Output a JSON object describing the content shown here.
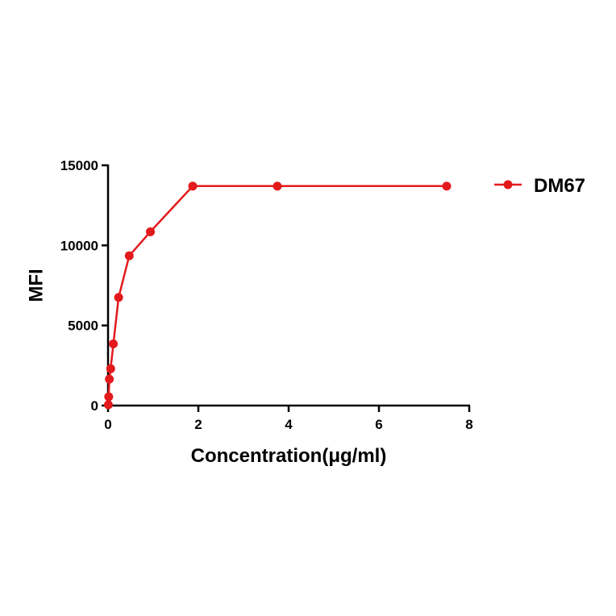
{
  "chart_data": {
    "type": "line",
    "title": "",
    "xlabel": "Concentration(μg/ml)",
    "ylabel": "MFI",
    "xlim": [
      0,
      8
    ],
    "ylim": [
      0,
      15000
    ],
    "x_ticks": [
      0,
      2,
      4,
      6,
      8
    ],
    "y_ticks": [
      0,
      5000,
      10000,
      15000
    ],
    "x_tick_labels": [
      "0",
      "2",
      "4",
      "6",
      "8"
    ],
    "y_tick_labels": [
      "0",
      "5000",
      "10000",
      "15000"
    ],
    "grid": false,
    "legend_position": "top-right",
    "series": [
      {
        "name": "DM67",
        "color": "#e31a1c",
        "x": [
          0.0073,
          0.0146,
          0.029,
          0.058,
          0.117,
          0.234,
          0.469,
          0.938,
          1.875,
          3.75,
          7.5
        ],
        "y": [
          50,
          550,
          1650,
          2300,
          3850,
          6750,
          9350,
          10850,
          13700,
          13700,
          13700
        ]
      }
    ]
  }
}
